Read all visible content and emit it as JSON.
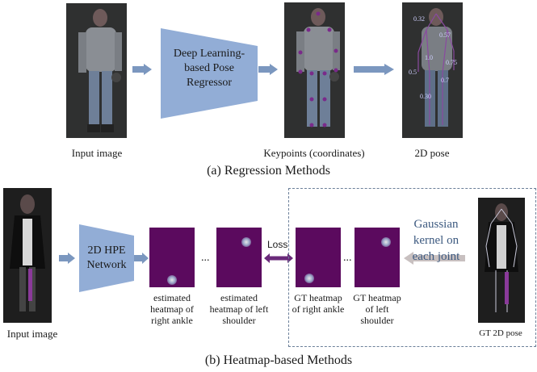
{
  "regression": {
    "input_label": "Input image",
    "network_label": "Deep Learning-based Pose Regressor",
    "keypoints_label": "Keypoints (coordinates)",
    "pose_label": "2D pose",
    "pose_values": [
      "0.32",
      "0.57",
      "1.0",
      "0.75",
      "0.5",
      "0.7",
      "0.30"
    ],
    "caption": "(a) Regression Methods"
  },
  "heatmap": {
    "input_label": "Input image",
    "network_label": "2D HPE Network",
    "est_ankle_label": "estimated heatmap of right ankle",
    "est_shoulder_label": "estimated heatmap of left shoulder",
    "ellipsis_1": "...",
    "ellipsis_2": "...",
    "loss_label": "Loss",
    "gt_ankle_label": "GT heatmap of right ankle",
    "gt_shoulder_label": "GT heatmap of left shoulder",
    "gaussian_label": "Gaussian kernel on each joint",
    "gt_pose_label": "GT 2D pose",
    "caption": "(b) Heatmap-based Methods"
  },
  "colors": {
    "arrow_fill": "#7b97bf",
    "network_fill": "#92add6",
    "heatmap_fill": "#5b0a5e",
    "loss_arrow": "#6a2a7a",
    "gaussian_arrow": "#c8c0c0",
    "dashed_border": "#6b7f99"
  }
}
